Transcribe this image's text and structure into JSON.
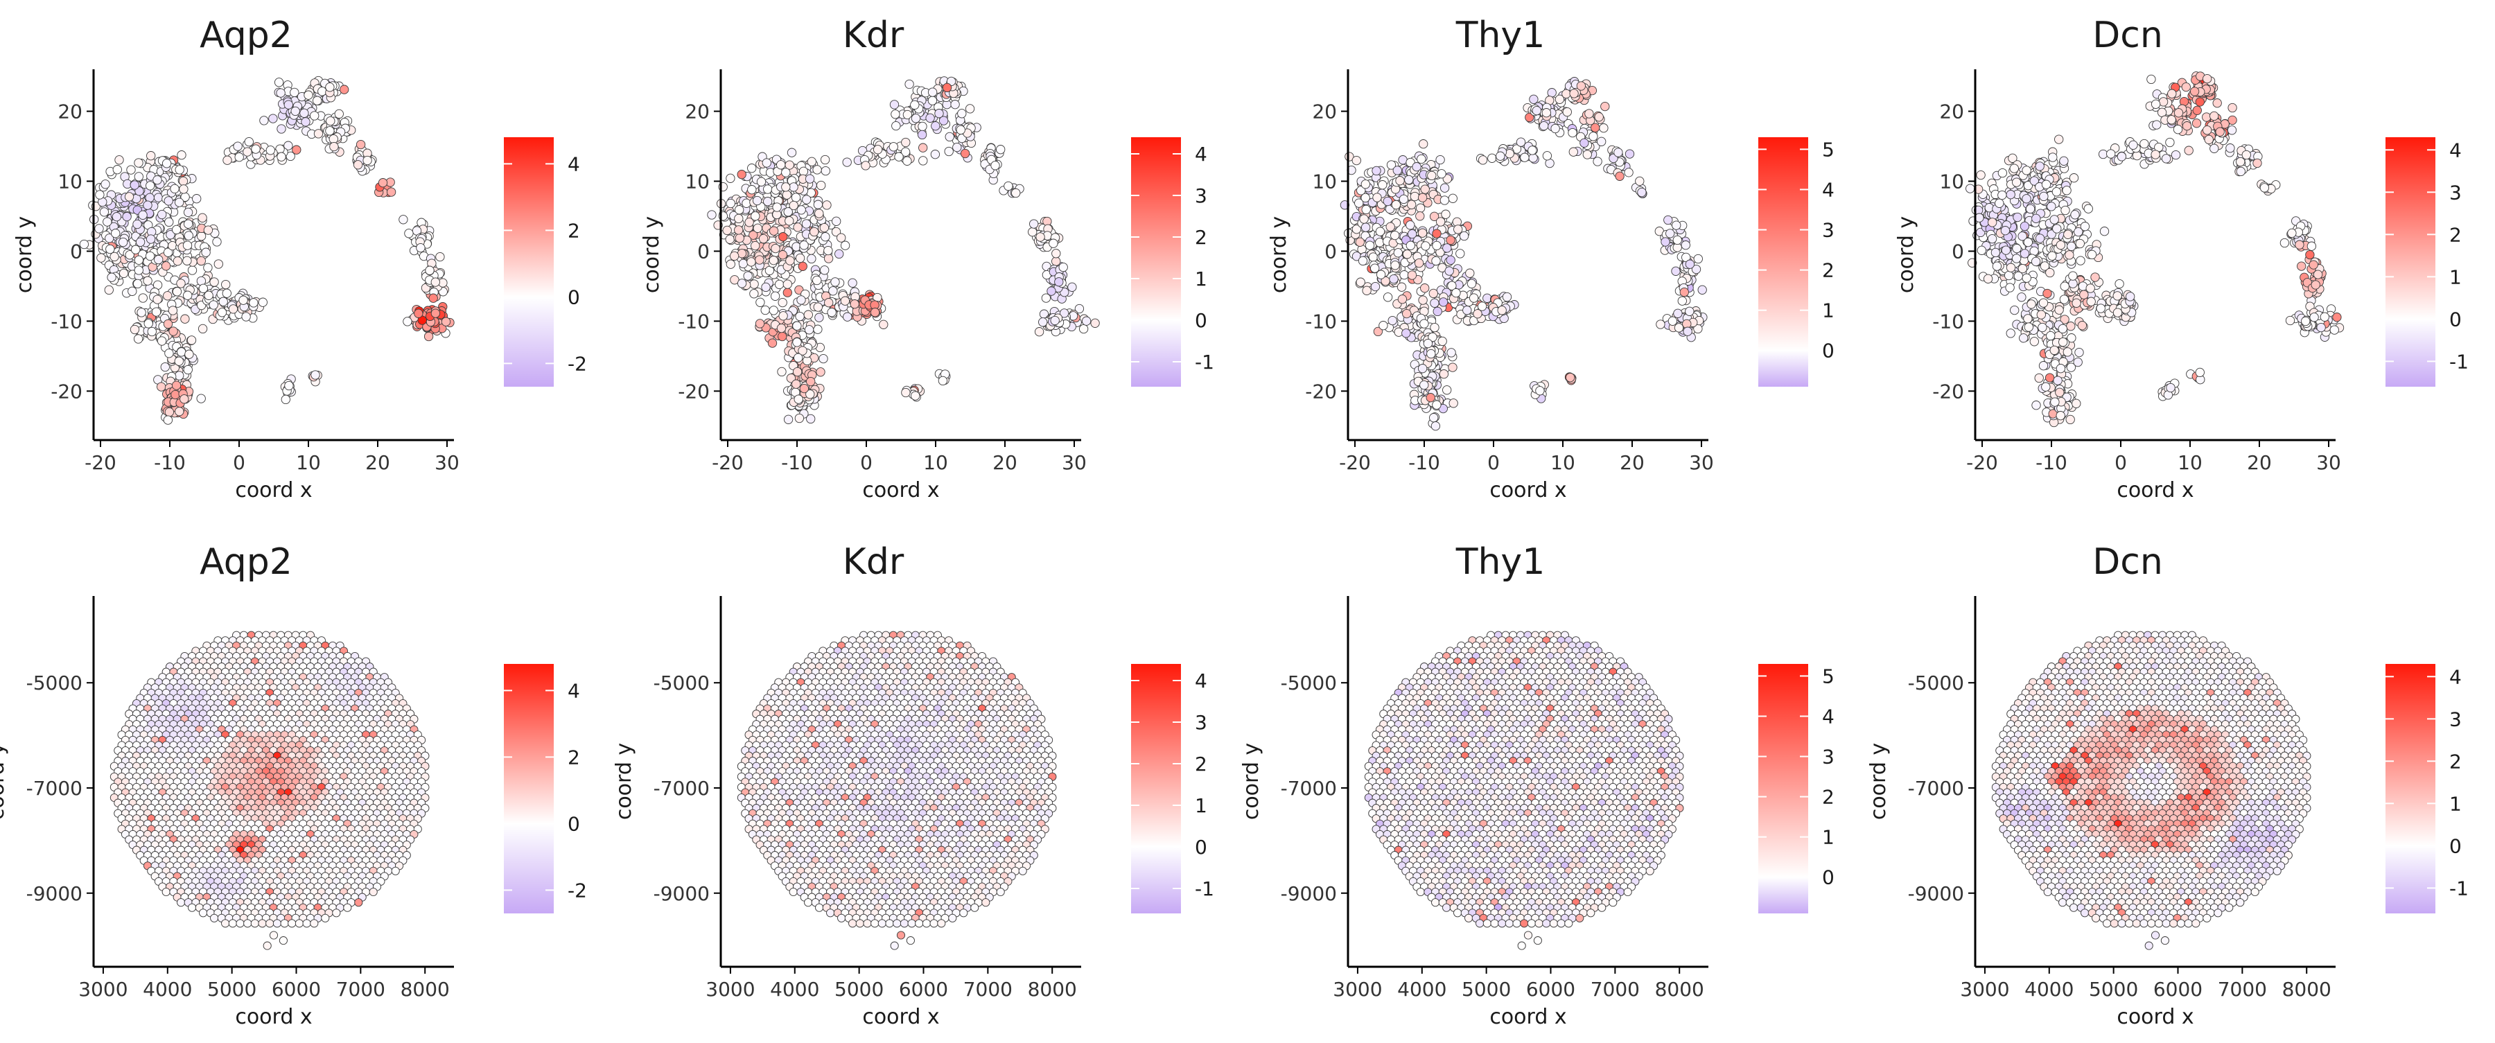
{
  "charts": [
    {
      "type": "scatter",
      "title": "Aqp2",
      "xlabel": "coord x",
      "ylabel": "coord y",
      "x_ticks": [
        "-20",
        "-10",
        "0",
        "10",
        "20",
        "30"
      ],
      "y_ticks": [
        "-20",
        "-10",
        "0",
        "10",
        "20"
      ],
      "xlim": [
        -21,
        31
      ],
      "ylim": [
        -27,
        26
      ],
      "legend_ticks": [
        "4",
        "2",
        "0",
        "-2"
      ],
      "color_range": [
        -2.7,
        4.8
      ],
      "embedding": "umap",
      "hotspots": [
        {
          "x": 28,
          "y": -9,
          "radius": 3,
          "value": 4.2
        },
        {
          "x": 21,
          "y": 9,
          "radius": 1.2,
          "value": 4.6
        },
        {
          "x": 17,
          "y": 16,
          "radius": 1.5,
          "value": 2.5
        },
        {
          "x": -9,
          "y": -21,
          "radius": 3,
          "value": 2
        },
        {
          "x": -9,
          "y": -11,
          "radius": 2,
          "value": 1.5
        }
      ],
      "low_regions": [
        {
          "x": -15,
          "y": 6,
          "radius": 7,
          "value": -1.5
        },
        {
          "x": 7,
          "y": 19,
          "radius": 5,
          "value": -1.2
        }
      ]
    },
    {
      "type": "scatter",
      "title": "Kdr",
      "xlabel": "coord x",
      "ylabel": "coord y",
      "x_ticks": [
        "-20",
        "-10",
        "0",
        "10",
        "20",
        "30"
      ],
      "y_ticks": [
        "-20",
        "-10",
        "0",
        "10",
        "20"
      ],
      "xlim": [
        -21,
        31
      ],
      "ylim": [
        -27,
        26
      ],
      "legend_ticks": [
        "4",
        "3",
        "2",
        "1",
        "0",
        "-1"
      ],
      "color_range": [
        -1.6,
        4.4
      ],
      "embedding": "umap",
      "hotspots": [
        {
          "x": 0,
          "y": -8,
          "radius": 2,
          "value": 3.6
        },
        {
          "x": -13,
          "y": -12,
          "radius": 3,
          "value": 1.8
        },
        {
          "x": -8,
          "y": -18,
          "radius": 3,
          "value": 1.4
        },
        {
          "x": -15,
          "y": 2,
          "radius": 4,
          "value": 1.2
        }
      ],
      "low_regions": [
        {
          "x": 27,
          "y": -5,
          "radius": 5,
          "value": -0.8
        },
        {
          "x": 10,
          "y": 19,
          "radius": 5,
          "value": -0.6
        }
      ]
    },
    {
      "type": "scatter",
      "title": "Thy1",
      "xlabel": "coord x",
      "ylabel": "coord y",
      "x_ticks": [
        "-20",
        "-10",
        "0",
        "10",
        "20",
        "30"
      ],
      "y_ticks": [
        "-20",
        "-10",
        "0",
        "10",
        "20"
      ],
      "xlim": [
        -21,
        31
      ],
      "ylim": [
        -27,
        26
      ],
      "legend_ticks": [
        "5",
        "4",
        "3",
        "2",
        "1",
        "0"
      ],
      "color_range": [
        -0.9,
        5.3
      ],
      "embedding": "umap",
      "hotspots": [
        {
          "x": 14,
          "y": 21,
          "radius": 3,
          "value": 2.2
        },
        {
          "x": -10,
          "y": 6,
          "radius": 3,
          "value": 1.6
        },
        {
          "x": -12,
          "y": -6,
          "radius": 3,
          "value": 1.4
        },
        {
          "x": 11,
          "y": -18,
          "radius": 1,
          "value": 2.5
        }
      ],
      "low_regions": []
    },
    {
      "type": "scatter",
      "title": "Dcn",
      "xlabel": "coord x",
      "ylabel": "coord y",
      "x_ticks": [
        "-20",
        "-10",
        "0",
        "10",
        "20",
        "30"
      ],
      "y_ticks": [
        "-20",
        "-10",
        "0",
        "10",
        "20"
      ],
      "xlim": [
        -21,
        31
      ],
      "ylim": [
        -27,
        26
      ],
      "legend_ticks": [
        "4",
        "3",
        "2",
        "1",
        "0",
        "-1"
      ],
      "color_range": [
        -1.6,
        4.3
      ],
      "embedding": "umap",
      "hotspots": [
        {
          "x": 12,
          "y": 21,
          "radius": 5,
          "value": 2.4
        },
        {
          "x": 26,
          "y": -3,
          "radius": 4,
          "value": 2
        },
        {
          "x": -5,
          "y": -3,
          "radius": 1.5,
          "value": 3.5
        },
        {
          "x": -6,
          "y": -8,
          "radius": 3,
          "value": 1.2
        }
      ],
      "low_regions": [
        {
          "x": -16,
          "y": 4,
          "radius": 7,
          "value": -1.1
        }
      ]
    },
    {
      "type": "scatter",
      "title": "Aqp2",
      "xlabel": "coord x",
      "ylabel": "coord y",
      "x_ticks": [
        "3000",
        "4000",
        "5000",
        "6000",
        "7000",
        "8000"
      ],
      "y_ticks": [
        "-5000",
        "-7000",
        "-9000"
      ],
      "xlim": [
        2850,
        8450
      ],
      "ylim": [
        -10400,
        -3350
      ],
      "legend_ticks": [
        "4",
        "2",
        "0",
        "-2"
      ],
      "color_range": [
        -2.7,
        4.8
      ],
      "embedding": "spatial",
      "hotspots": [
        {
          "x": 5600,
          "y": -6800,
          "radius": 900,
          "value": 2.2
        },
        {
          "x": 5200,
          "y": -8100,
          "radius": 300,
          "value": 3.5
        }
      ],
      "low_regions": [
        {
          "x": 4200,
          "y": -5600,
          "radius": 900,
          "value": -1.3
        },
        {
          "x": 6900,
          "y": -5000,
          "radius": 700,
          "value": -1
        },
        {
          "x": 4800,
          "y": -8800,
          "radius": 700,
          "value": -1
        }
      ]
    },
    {
      "type": "scatter",
      "title": "Kdr",
      "xlabel": "coord x",
      "ylabel": "coord y",
      "x_ticks": [
        "3000",
        "4000",
        "5000",
        "6000",
        "7000",
        "8000"
      ],
      "y_ticks": [
        "-5000",
        "-7000",
        "-9000"
      ],
      "xlim": [
        2850,
        8450
      ],
      "ylim": [
        -10400,
        -3350
      ],
      "legend_ticks": [
        "4",
        "3",
        "2",
        "1",
        "0",
        "-1"
      ],
      "color_range": [
        -1.6,
        4.4
      ],
      "embedding": "spatial",
      "hotspots": [],
      "low_regions": [
        {
          "x": 5600,
          "y": -6800,
          "radius": 2200,
          "value": -0.4
        }
      ]
    },
    {
      "type": "scatter",
      "title": "Thy1",
      "xlabel": "coord x",
      "ylabel": "coord y",
      "x_ticks": [
        "3000",
        "4000",
        "5000",
        "6000",
        "7000",
        "8000"
      ],
      "y_ticks": [
        "-5000",
        "-7000",
        "-9000"
      ],
      "xlim": [
        2850,
        8450
      ],
      "ylim": [
        -10400,
        -3350
      ],
      "legend_ticks": [
        "5",
        "4",
        "3",
        "2",
        "1",
        "0"
      ],
      "color_range": [
        -0.9,
        5.3
      ],
      "embedding": "spatial",
      "hotspots": [],
      "low_regions": []
    },
    {
      "type": "scatter",
      "title": "Dcn",
      "xlabel": "coord x",
      "ylabel": "coord y",
      "x_ticks": [
        "3000",
        "4000",
        "5000",
        "6000",
        "7000",
        "8000"
      ],
      "y_ticks": [
        "-5000",
        "-7000",
        "-9000"
      ],
      "xlim": [
        2850,
        8450
      ],
      "ylim": [
        -10400,
        -3350
      ],
      "legend_ticks": [
        "4",
        "3",
        "2",
        "1",
        "0",
        "-1"
      ],
      "color_range": [
        -1.6,
        4.3
      ],
      "embedding": "spatial",
      "hotspots": [
        {
          "x": 5600,
          "y": -6900,
          "radius": 1300,
          "value": 1.8,
          "ring": true
        },
        {
          "x": 4200,
          "y": -6800,
          "radius": 250,
          "value": 3.5
        }
      ],
      "low_regions": [
        {
          "x": 5600,
          "y": -6900,
          "radius": 600,
          "value": -0.3
        },
        {
          "x": 7200,
          "y": -8000,
          "radius": 900,
          "value": -1
        },
        {
          "x": 3700,
          "y": -7500,
          "radius": 700,
          "value": -1
        }
      ]
    }
  ],
  "colors": {
    "low": "#c7a9f5",
    "mid": "#ffffff",
    "high": "#ff1a0a",
    "point_stroke": "#3a3a3a",
    "axis": "#000000"
  }
}
